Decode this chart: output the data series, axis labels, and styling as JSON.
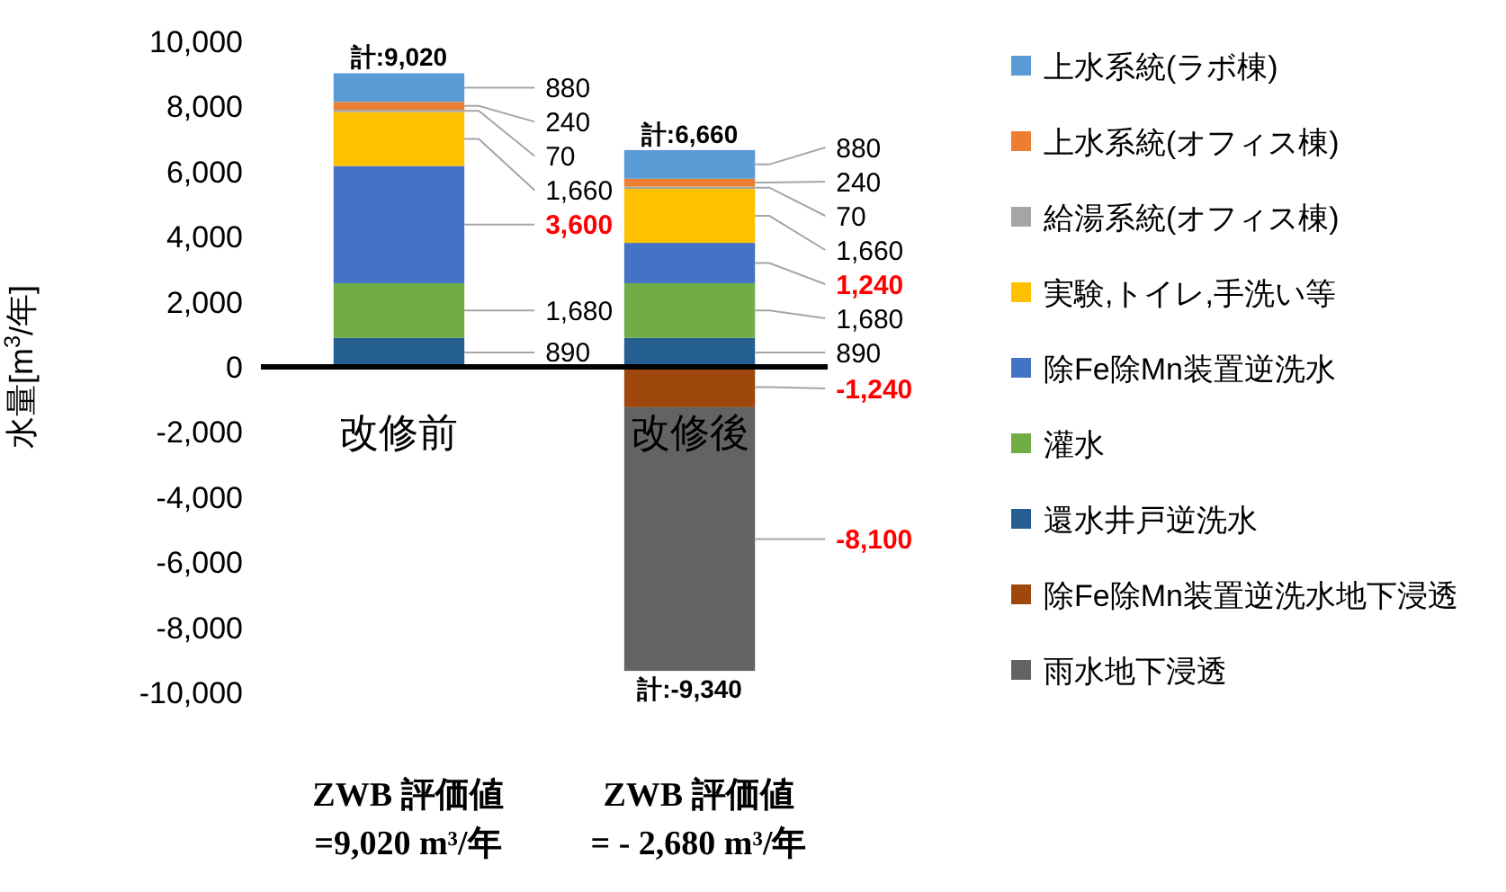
{
  "chart_data": {
    "type": "bar",
    "stacked": true,
    "categories": [
      "改修前",
      "改修後"
    ],
    "ylabel": "水量[m$^{3}$/年]",
    "ylim": [
      -10000,
      10000
    ],
    "yticks": [
      {
        "value": -10000,
        "label": "-10,000"
      },
      {
        "value": -8000,
        "label": "-8,000"
      },
      {
        "value": -6000,
        "label": "-6,000"
      },
      {
        "value": -4000,
        "label": "-4,000"
      },
      {
        "value": -2000,
        "label": "-2,000"
      },
      0,
      {
        "value": 2000,
        "label": "2,000"
      },
      {
        "value": 4000,
        "label": "4,000"
      },
      {
        "value": 6000,
        "label": "6,000"
      },
      {
        "value": 8000,
        "label": "8,000"
      },
      {
        "value": 10000,
        "label": "10,000"
      }
    ],
    "grid": false,
    "legend": "right",
    "series": [
      {
        "name": "還水井戸逆洗水",
        "color": "#255e91",
        "values": [
          890,
          890
        ],
        "value_labels": [
          "890",
          "890"
        ]
      },
      {
        "name": "灌水",
        "color": "#70ad47",
        "values": [
          1680,
          1680
        ],
        "value_labels": [
          "1,680",
          "1,680"
        ]
      },
      {
        "name": "除Fe除Mn装置逆洗水",
        "color": "#4472c4",
        "values": [
          3600,
          1240
        ],
        "value_labels": [
          "3,600",
          "1,240"
        ]
      },
      {
        "name": "実験,トイレ,手洗い等",
        "color": "#ffc000",
        "values": [
          1660,
          1660
        ],
        "value_labels": [
          "1,660",
          "1,660"
        ]
      },
      {
        "name": "給湯系統(オフィス棟)",
        "color": "#a5a5a5",
        "values": [
          70,
          70
        ],
        "value_labels": [
          "70",
          "70"
        ]
      },
      {
        "name": "上水系統(オフィス棟)",
        "color": "#ed7d31",
        "values": [
          240,
          240
        ],
        "value_labels": [
          "240",
          "240"
        ]
      },
      {
        "name": "上水系統(ラボ棟)",
        "color": "#5b9bd5",
        "values": [
          880,
          880
        ],
        "value_labels": [
          "880",
          "880"
        ]
      },
      {
        "name": "除Fe除Mn装置逆洗水地下浸透",
        "color": "#9e480e",
        "values": [
          null,
          -1240
        ],
        "value_labels": [
          null,
          "-1,240"
        ]
      },
      {
        "name": "雨水地下浸透",
        "color": "#636363",
        "values": [
          null,
          -8100
        ],
        "value_labels": [
          null,
          "-8,100"
        ]
      }
    ],
    "annotations": [
      {
        "text": "計:9,020",
        "x": "改修前",
        "y": 9020
      },
      {
        "text": "計:6,660",
        "x": "改修後",
        "y": 6660
      },
      {
        "text": "計:-9,340",
        "x": "改修後",
        "y": -9340
      },
      "ZWB 評価値\n=9,020 m³/年",
      "ZWB 評価値\n= - 2,680 m³/年"
    ]
  }
}
